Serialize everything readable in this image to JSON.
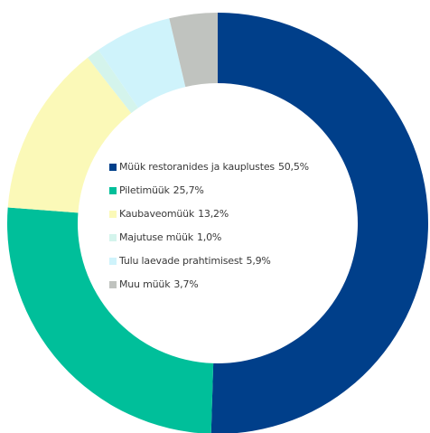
{
  "chart_data": {
    "type": "pie",
    "donut": true,
    "title": "",
    "legend_position": "center",
    "slices": [
      {
        "label": "Müük restoranides ja kauplustes",
        "value": 50.5,
        "value_label": "50,5%",
        "color": "#003f8a"
      },
      {
        "label": "Piletimüük",
        "value": 25.7,
        "value_label": "25,7%",
        "color": "#00bf9a"
      },
      {
        "label": "Kaubaveomüük",
        "value": 13.2,
        "value_label": "13,2%",
        "color": "#fbf9b8"
      },
      {
        "label": "Majutuse müük",
        "value": 1.0,
        "value_label": "1,0%",
        "color": "#d4f4ec"
      },
      {
        "label": "Tulu laevade prahtimisest",
        "value": 5.9,
        "value_label": "5,9%",
        "color": "#cff3fb"
      },
      {
        "label": "Muu müük",
        "value": 3.7,
        "value_label": "3,7%",
        "color": "#c0c3bf"
      }
    ]
  }
}
